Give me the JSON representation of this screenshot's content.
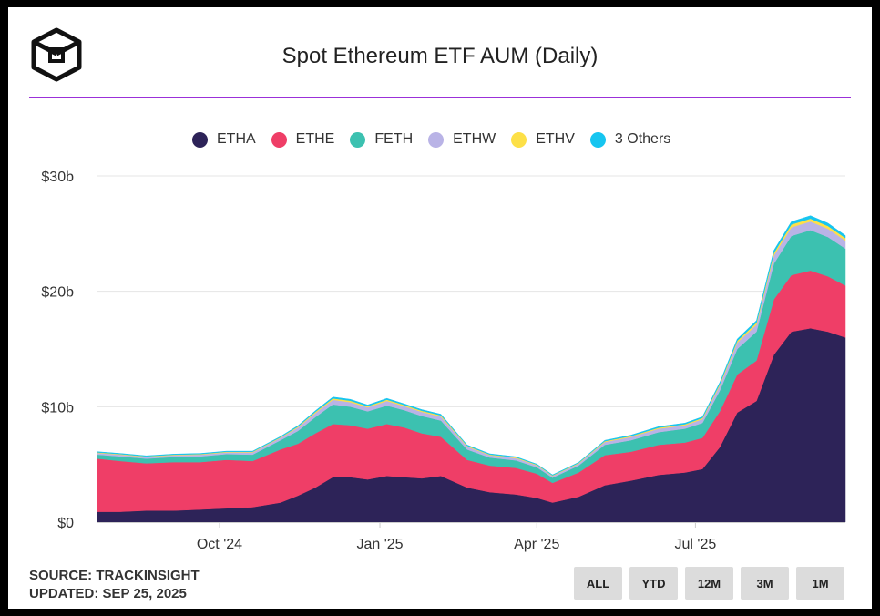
{
  "header": {
    "title": "Spot Ethereum ETF AUM (Daily)"
  },
  "footer": {
    "source": "SOURCE: TRACKINSIGHT",
    "updated": "UPDATED: SEP 25, 2025"
  },
  "range_buttons": [
    "ALL",
    "YTD",
    "12M",
    "3M",
    "1M"
  ],
  "chart_data": {
    "type": "area",
    "stacked": true,
    "title": "Spot Ethereum ETF AUM (Daily)",
    "y_unit": "USD billions",
    "ylim": [
      0,
      30
    ],
    "y_ticks": [
      {
        "value": 0,
        "label": "$0"
      },
      {
        "value": 10,
        "label": "$10b"
      },
      {
        "value": 20,
        "label": "$20b"
      },
      {
        "value": 30,
        "label": "$30b"
      }
    ],
    "x_ticks": [
      {
        "date": "2024-10-01",
        "label": "Oct '24"
      },
      {
        "date": "2025-01-01",
        "label": "Jan '25"
      },
      {
        "date": "2025-04-01",
        "label": "Apr '25"
      },
      {
        "date": "2025-07-01",
        "label": "Jul '25"
      }
    ],
    "xlim": [
      "2024-07-23",
      "2025-09-25"
    ],
    "grid": true,
    "legend_position": "top",
    "x": [
      "2024-07-23",
      "2024-08-05",
      "2024-08-20",
      "2024-09-05",
      "2024-09-20",
      "2024-10-05",
      "2024-10-20",
      "2024-11-05",
      "2024-11-15",
      "2024-11-25",
      "2024-12-05",
      "2024-12-15",
      "2024-12-25",
      "2025-01-05",
      "2025-01-15",
      "2025-01-25",
      "2025-02-05",
      "2025-02-20",
      "2025-03-05",
      "2025-03-20",
      "2025-04-01",
      "2025-04-10",
      "2025-04-25",
      "2025-05-10",
      "2025-05-25",
      "2025-06-10",
      "2025-06-25",
      "2025-07-05",
      "2025-07-15",
      "2025-07-25",
      "2025-08-05",
      "2025-08-15",
      "2025-08-25",
      "2025-09-05",
      "2025-09-15",
      "2025-09-25"
    ],
    "series": [
      {
        "name": "ETHA",
        "color": "#2d2358",
        "values": [
          0.9,
          0.9,
          1.0,
          1.0,
          1.1,
          1.2,
          1.3,
          1.7,
          2.3,
          3.0,
          3.9,
          3.9,
          3.7,
          4.0,
          3.9,
          3.8,
          4.0,
          3.0,
          2.6,
          2.4,
          2.1,
          1.7,
          2.2,
          3.2,
          3.6,
          4.1,
          4.3,
          4.6,
          6.5,
          9.5,
          10.5,
          14.5,
          16.5,
          16.8,
          16.5,
          16.0
        ]
      },
      {
        "name": "ETHE",
        "color": "#ef3e67",
        "values": [
          4.6,
          4.4,
          4.1,
          4.2,
          4.1,
          4.2,
          4.0,
          4.6,
          4.5,
          4.7,
          4.6,
          4.5,
          4.4,
          4.5,
          4.3,
          3.9,
          3.4,
          2.4,
          2.3,
          2.3,
          2.1,
          1.7,
          2.1,
          2.6,
          2.5,
          2.6,
          2.6,
          2.7,
          3.1,
          3.3,
          3.5,
          4.8,
          4.9,
          5.0,
          4.8,
          4.5
        ]
      },
      {
        "name": "FETH",
        "color": "#3cc1b0",
        "values": [
          0.35,
          0.4,
          0.4,
          0.45,
          0.5,
          0.5,
          0.55,
          0.8,
          1.1,
          1.4,
          1.7,
          1.6,
          1.5,
          1.6,
          1.5,
          1.5,
          1.4,
          0.9,
          0.7,
          0.65,
          0.55,
          0.45,
          0.6,
          0.9,
          1.0,
          1.1,
          1.2,
          1.3,
          1.8,
          2.2,
          2.5,
          3.1,
          3.4,
          3.5,
          3.4,
          3.2
        ]
      },
      {
        "name": "ETHW",
        "color": "#b9b3e6",
        "values": [
          0.15,
          0.15,
          0.15,
          0.15,
          0.15,
          0.15,
          0.2,
          0.2,
          0.3,
          0.35,
          0.4,
          0.4,
          0.35,
          0.4,
          0.35,
          0.35,
          0.35,
          0.25,
          0.2,
          0.2,
          0.18,
          0.15,
          0.18,
          0.25,
          0.28,
          0.3,
          0.3,
          0.33,
          0.45,
          0.55,
          0.6,
          0.7,
          0.75,
          0.75,
          0.72,
          0.7
        ]
      },
      {
        "name": "ETHV",
        "color": "#fde047",
        "values": [
          0.05,
          0.05,
          0.05,
          0.05,
          0.05,
          0.05,
          0.05,
          0.06,
          0.08,
          0.1,
          0.12,
          0.12,
          0.1,
          0.11,
          0.1,
          0.1,
          0.1,
          0.07,
          0.06,
          0.06,
          0.05,
          0.05,
          0.05,
          0.07,
          0.08,
          0.09,
          0.09,
          0.1,
          0.13,
          0.16,
          0.18,
          0.22,
          0.24,
          0.25,
          0.24,
          0.22
        ]
      },
      {
        "name": "3 Others",
        "color": "#16c5f0",
        "values": [
          0.05,
          0.05,
          0.05,
          0.05,
          0.05,
          0.05,
          0.05,
          0.06,
          0.08,
          0.1,
          0.12,
          0.12,
          0.1,
          0.11,
          0.1,
          0.1,
          0.1,
          0.07,
          0.06,
          0.06,
          0.05,
          0.05,
          0.05,
          0.07,
          0.08,
          0.09,
          0.09,
          0.1,
          0.13,
          0.16,
          0.18,
          0.22,
          0.24,
          0.25,
          0.24,
          0.22
        ]
      }
    ]
  }
}
